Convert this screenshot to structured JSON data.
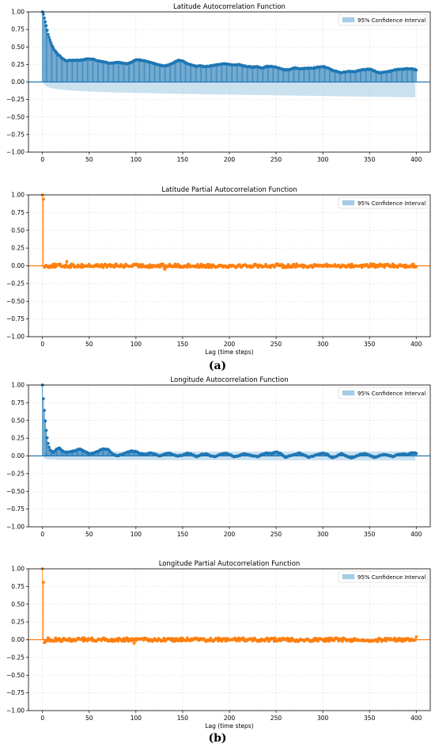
{
  "panel_labels": [
    "(a)",
    "(b)"
  ],
  "colors": {
    "acf": "#1f77b4",
    "pacf": "#ff7f0e",
    "confidence": "#a6cde6",
    "confidence_edge": "#9ec4dd",
    "zero_line_acf": "#1f77b4",
    "zero_line_pacf": "#ff7f0e"
  },
  "chart_data": [
    {
      "type": "stem",
      "title": "Latitude Autocorrelation Function",
      "xlabel": "",
      "ylabel": "",
      "legend": "95% Confidence Interval",
      "legend_position": "top-right",
      "grid": true,
      "xlim": [
        -15,
        415
      ],
      "ylim": [
        -1.0,
        1.0
      ],
      "xticks": [
        0,
        50,
        100,
        150,
        200,
        250,
        300,
        350,
        400
      ],
      "yticks": [
        -1.0,
        -0.75,
        -0.5,
        -0.25,
        0.0,
        0.25,
        0.5,
        0.75,
        1.0
      ],
      "ytick_labels": [
        "−1.00",
        "−0.75",
        "−0.50",
        "−0.25",
        "0.00",
        "0.25",
        "0.50",
        "0.75",
        "1.00"
      ],
      "series_color": "acf",
      "profile": [
        [
          0,
          1.0
        ],
        [
          1,
          0.97
        ],
        [
          2,
          0.91
        ],
        [
          3,
          0.86
        ],
        [
          4,
          0.8
        ],
        [
          5,
          0.74
        ],
        [
          6,
          0.68
        ],
        [
          8,
          0.6
        ],
        [
          10,
          0.52
        ],
        [
          13,
          0.45
        ],
        [
          16,
          0.4
        ],
        [
          20,
          0.35
        ],
        [
          25,
          0.3
        ],
        [
          30,
          0.31
        ],
        [
          35,
          0.31
        ],
        [
          40,
          0.31
        ],
        [
          45,
          0.32
        ],
        [
          50,
          0.33
        ],
        [
          55,
          0.32
        ],
        [
          60,
          0.3
        ],
        [
          65,
          0.29
        ],
        [
          70,
          0.27
        ],
        [
          75,
          0.27
        ],
        [
          80,
          0.28
        ],
        [
          85,
          0.27
        ],
        [
          90,
          0.26
        ],
        [
          95,
          0.28
        ],
        [
          100,
          0.32
        ],
        [
          105,
          0.31
        ],
        [
          110,
          0.3
        ],
        [
          115,
          0.28
        ],
        [
          120,
          0.26
        ],
        [
          125,
          0.24
        ],
        [
          130,
          0.23
        ],
        [
          135,
          0.24
        ],
        [
          140,
          0.27
        ],
        [
          145,
          0.31
        ],
        [
          150,
          0.3
        ],
        [
          155,
          0.26
        ],
        [
          160,
          0.24
        ],
        [
          165,
          0.22
        ],
        [
          170,
          0.23
        ],
        [
          175,
          0.22
        ],
        [
          180,
          0.23
        ],
        [
          185,
          0.24
        ],
        [
          190,
          0.25
        ],
        [
          195,
          0.26
        ],
        [
          200,
          0.25
        ],
        [
          205,
          0.24
        ],
        [
          210,
          0.25
        ],
        [
          215,
          0.23
        ],
        [
          220,
          0.22
        ],
        [
          225,
          0.21
        ],
        [
          230,
          0.22
        ],
        [
          235,
          0.2
        ],
        [
          240,
          0.22
        ],
        [
          245,
          0.22
        ],
        [
          250,
          0.21
        ],
        [
          255,
          0.19
        ],
        [
          260,
          0.17
        ],
        [
          265,
          0.18
        ],
        [
          270,
          0.2
        ],
        [
          275,
          0.19
        ],
        [
          280,
          0.19
        ],
        [
          285,
          0.2
        ],
        [
          290,
          0.2
        ],
        [
          295,
          0.21
        ],
        [
          300,
          0.22
        ],
        [
          305,
          0.2
        ],
        [
          310,
          0.17
        ],
        [
          315,
          0.15
        ],
        [
          320,
          0.13
        ],
        [
          325,
          0.15
        ],
        [
          330,
          0.15
        ],
        [
          335,
          0.15
        ],
        [
          340,
          0.17
        ],
        [
          345,
          0.18
        ],
        [
          350,
          0.18
        ],
        [
          355,
          0.16
        ],
        [
          360,
          0.13
        ],
        [
          365,
          0.14
        ],
        [
          370,
          0.15
        ],
        [
          375,
          0.16
        ],
        [
          380,
          0.18
        ],
        [
          385,
          0.18
        ],
        [
          390,
          0.19
        ],
        [
          395,
          0.19
        ],
        [
          400,
          0.17
        ]
      ],
      "ci": [
        [
          1,
          -0.03
        ],
        [
          3,
          -0.05
        ],
        [
          5,
          -0.07
        ],
        [
          10,
          -0.09
        ],
        [
          20,
          -0.11
        ],
        [
          40,
          -0.13
        ],
        [
          80,
          -0.15
        ],
        [
          150,
          -0.17
        ],
        [
          250,
          -0.19
        ],
        [
          400,
          -0.22
        ]
      ],
      "ci_symmetric": false,
      "ci_upper": [
        [
          1,
          0.0
        ],
        [
          400,
          0.0
        ]
      ],
      "noise": 0.0
    },
    {
      "type": "stem",
      "title": "Latitude Partial Autocorrelation Function",
      "xlabel": "Lag (time steps)",
      "ylabel": "",
      "legend": "95% Confidence Interval",
      "legend_position": "top-right",
      "grid": true,
      "xlim": [
        -15,
        415
      ],
      "ylim": [
        -1.0,
        1.0
      ],
      "xticks": [
        0,
        50,
        100,
        150,
        200,
        250,
        300,
        350,
        400
      ],
      "yticks": [
        -1.0,
        -0.75,
        -0.5,
        -0.25,
        0.0,
        0.25,
        0.5,
        0.75,
        1.0
      ],
      "ytick_labels": [
        "−1.00",
        "−0.75",
        "−0.50",
        "−0.25",
        "0.00",
        "0.25",
        "0.50",
        "0.75",
        "1.00"
      ],
      "series_color": "pacf",
      "spikes": [
        [
          0,
          1.0
        ],
        [
          1,
          0.94
        ],
        [
          2,
          -0.02
        ],
        [
          3,
          -0.01
        ],
        [
          26,
          0.06
        ],
        [
          131,
          -0.05
        ]
      ],
      "noise": 0.025,
      "ci_half": 0.015
    },
    {
      "type": "stem",
      "title": "Longitude Autocorrelation Function",
      "xlabel": "",
      "ylabel": "",
      "legend": "95% Confidence Interval",
      "legend_position": "top-right",
      "grid": true,
      "xlim": [
        -15,
        415
      ],
      "ylim": [
        -1.0,
        1.0
      ],
      "xticks": [
        0,
        50,
        100,
        150,
        200,
        250,
        300,
        350,
        400
      ],
      "yticks": [
        -1.0,
        -0.75,
        -0.5,
        -0.25,
        0.0,
        0.25,
        0.5,
        0.75,
        1.0
      ],
      "ytick_labels": [
        "−1.00",
        "−0.75",
        "−0.50",
        "−0.25",
        "0.00",
        "0.25",
        "0.50",
        "0.75",
        "1.00"
      ],
      "series_color": "acf",
      "profile": [
        [
          0,
          1.0
        ],
        [
          1,
          0.81
        ],
        [
          2,
          0.64
        ],
        [
          3,
          0.49
        ],
        [
          4,
          0.36
        ],
        [
          5,
          0.26
        ],
        [
          6,
          0.18
        ],
        [
          7,
          0.12
        ],
        [
          8,
          0.08
        ],
        [
          10,
          0.06
        ],
        [
          12,
          0.05
        ],
        [
          15,
          0.09
        ],
        [
          18,
          0.11
        ],
        [
          20,
          0.08
        ],
        [
          25,
          0.05
        ],
        [
          30,
          0.06
        ],
        [
          35,
          0.07
        ],
        [
          40,
          0.1
        ],
        [
          45,
          0.06
        ],
        [
          50,
          0.03
        ],
        [
          55,
          0.04
        ],
        [
          60,
          0.07
        ],
        [
          65,
          0.1
        ],
        [
          70,
          0.09
        ],
        [
          75,
          0.03
        ],
        [
          80,
          0.0
        ],
        [
          85,
          0.02
        ],
        [
          90,
          0.05
        ],
        [
          95,
          0.07
        ],
        [
          100,
          0.06
        ],
        [
          105,
          0.03
        ],
        [
          110,
          0.02
        ],
        [
          115,
          0.04
        ],
        [
          120,
          0.03
        ],
        [
          125,
          0.0
        ],
        [
          130,
          0.02
        ],
        [
          135,
          0.04
        ],
        [
          140,
          0.02
        ],
        [
          145,
          0.0
        ],
        [
          150,
          0.01
        ],
        [
          155,
          0.04
        ],
        [
          160,
          0.02
        ],
        [
          165,
          -0.01
        ],
        [
          170,
          0.02
        ],
        [
          175,
          0.03
        ],
        [
          180,
          0.0
        ],
        [
          185,
          -0.01
        ],
        [
          190,
          0.02
        ],
        [
          195,
          0.04
        ],
        [
          200,
          0.02
        ],
        [
          205,
          -0.01
        ],
        [
          210,
          0.0
        ],
        [
          215,
          0.03
        ],
        [
          220,
          0.02
        ],
        [
          225,
          0.0
        ],
        [
          230,
          -0.01
        ],
        [
          235,
          0.02
        ],
        [
          240,
          0.04
        ],
        [
          245,
          0.03
        ],
        [
          250,
          0.06
        ],
        [
          255,
          0.03
        ],
        [
          260,
          -0.02
        ],
        [
          265,
          0.0
        ],
        [
          270,
          0.02
        ],
        [
          275,
          0.04
        ],
        [
          280,
          0.01
        ],
        [
          285,
          -0.02
        ],
        [
          290,
          0.0
        ],
        [
          295,
          0.02
        ],
        [
          300,
          0.04
        ],
        [
          305,
          0.02
        ],
        [
          310,
          -0.03
        ],
        [
          315,
          0.0
        ],
        [
          320,
          0.03
        ],
        [
          325,
          0.0
        ],
        [
          330,
          -0.03
        ],
        [
          335,
          -0.01
        ],
        [
          340,
          0.02
        ],
        [
          345,
          0.03
        ],
        [
          350,
          0.01
        ],
        [
          355,
          -0.02
        ],
        [
          360,
          0.0
        ],
        [
          365,
          0.02
        ],
        [
          370,
          0.01
        ],
        [
          375,
          -0.01
        ],
        [
          380,
          0.02
        ],
        [
          385,
          0.03
        ],
        [
          390,
          0.02
        ],
        [
          395,
          0.04
        ],
        [
          400,
          0.04
        ]
      ],
      "ci": [
        [
          1,
          -0.03
        ],
        [
          5,
          -0.05
        ],
        [
          20,
          -0.06
        ],
        [
          100,
          -0.06
        ],
        [
          400,
          -0.065
        ]
      ],
      "ci_symmetric": false,
      "ci_upper": [
        [
          1,
          0.03
        ],
        [
          5,
          0.05
        ],
        [
          20,
          0.06
        ],
        [
          100,
          0.06
        ],
        [
          400,
          0.065
        ]
      ],
      "noise": 0.0
    },
    {
      "type": "stem",
      "title": "Longitude Partial Autocorrelation Function",
      "xlabel": "Lag (time steps)",
      "ylabel": "",
      "legend": "95% Confidence Interval",
      "legend_position": "top-right",
      "grid": true,
      "xlim": [
        -15,
        415
      ],
      "ylim": [
        -1.0,
        1.0
      ],
      "xticks": [
        0,
        50,
        100,
        150,
        200,
        250,
        300,
        350,
        400
      ],
      "yticks": [
        -1.0,
        -0.75,
        -0.5,
        -0.25,
        0.0,
        0.25,
        0.5,
        0.75,
        1.0
      ],
      "ytick_labels": [
        "−1.00",
        "−0.75",
        "−0.50",
        "−0.25",
        "0.00",
        "0.25",
        "0.50",
        "0.75",
        "1.00"
      ],
      "series_color": "pacf",
      "spikes": [
        [
          0,
          1.0
        ],
        [
          1,
          0.81
        ],
        [
          2,
          -0.04
        ],
        [
          3,
          -0.03
        ],
        [
          98,
          -0.05
        ],
        [
          400,
          0.04
        ]
      ],
      "noise": 0.025,
      "ci_half": 0.015
    }
  ]
}
